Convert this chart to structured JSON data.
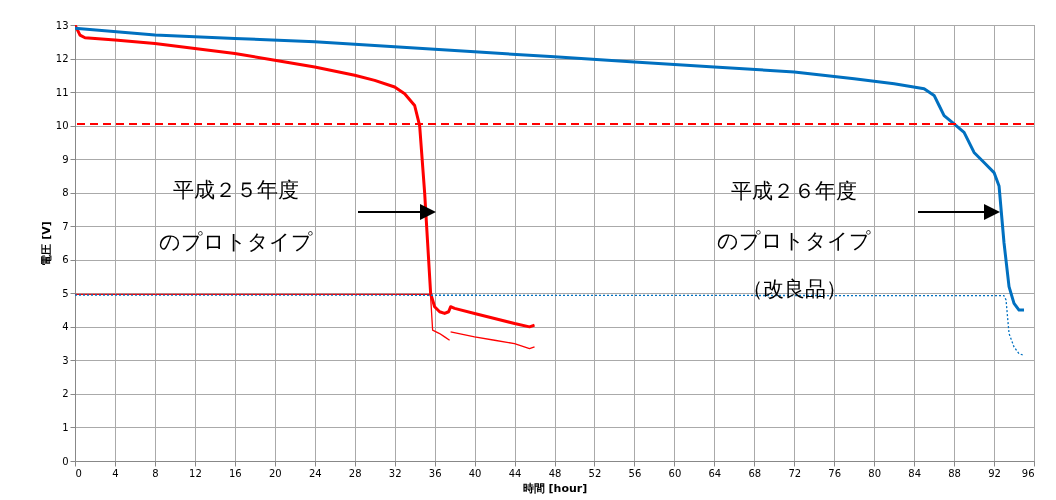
{
  "chart_data": {
    "type": "line",
    "xlabel": "時間 [hour]",
    "ylabel": "電圧 [V]",
    "xlim": [
      0,
      96
    ],
    "xticks": [
      0,
      4,
      8,
      12,
      16,
      20,
      24,
      28,
      32,
      36,
      40,
      44,
      48,
      52,
      56,
      60,
      64,
      68,
      72,
      76,
      80,
      84,
      88,
      92,
      96
    ],
    "ylim": [
      0,
      13
    ],
    "yticks": [
      0,
      1,
      2,
      3,
      4,
      5,
      6,
      7,
      8,
      9,
      10,
      11,
      12,
      13
    ],
    "grid": true,
    "series": [
      {
        "color": "#ff0000",
        "line_style": "solid",
        "x": [
          0,
          0.5,
          1,
          4,
          8,
          12,
          16,
          20,
          24,
          28,
          30,
          32,
          33,
          34,
          34.5,
          35,
          35.3,
          35.6,
          36,
          36.5,
          37,
          37.4,
          37.6,
          38,
          40,
          42,
          44,
          45.5,
          46
        ],
        "values": [
          13,
          12.7,
          12.62,
          12.55,
          12.45,
          12.3,
          12.15,
          11.95,
          11.75,
          11.5,
          11.35,
          11.15,
          10.95,
          10.6,
          10,
          8,
          6.5,
          5,
          4.6,
          4.45,
          4.4,
          4.45,
          4.6,
          4.55,
          4.4,
          4.25,
          4.1,
          4.0,
          4.05
        ]
      },
      {
        "color": "#ff0000",
        "line_style": "solid",
        "x": [
          0,
          35.5,
          35.6,
          35.8,
          36.5,
          37,
          37.5,
          37.55,
          37.6,
          40,
          42,
          44,
          45.5,
          46
        ],
        "values": [
          4.97,
          4.97,
          4.9,
          3.9,
          3.8,
          3.7,
          3.6,
          null,
          3.85,
          3.7,
          3.6,
          3.5,
          3.35,
          3.4
        ]
      },
      {
        "color": "#0070c0",
        "line_style": "solid",
        "x": [
          0,
          8,
          16,
          24,
          32,
          40,
          48,
          56,
          64,
          72,
          78,
          82,
          85,
          86,
          86.5,
          87,
          88,
          89,
          90,
          91,
          92,
          92.5,
          93,
          93.5,
          94,
          94.5,
          95
        ],
        "values": [
          12.9,
          12.7,
          12.6,
          12.5,
          12.35,
          12.2,
          12.05,
          11.9,
          11.75,
          11.6,
          11.4,
          11.25,
          11.1,
          10.9,
          10.6,
          10.3,
          10.05,
          9.8,
          9.2,
          8.9,
          8.6,
          8.2,
          6.5,
          5.2,
          4.7,
          4.5,
          4.5
        ]
      },
      {
        "color": "#0070c0",
        "line_style": "dotted",
        "x": [
          0,
          93,
          93.2,
          93.5,
          94,
          94.5,
          95
        ],
        "values": [
          4.95,
          4.93,
          4.8,
          3.8,
          3.4,
          3.2,
          3.15
        ]
      }
    ],
    "ref_lines": [
      {
        "axis": "y",
        "value": 10.05,
        "color": "#ff0000",
        "line_style": "dashed"
      }
    ],
    "annotations": [
      "平成２５年度",
      "のプロトタイプ",
      "平成２６年度",
      "のプロトタイプ",
      "（改良品）"
    ]
  }
}
